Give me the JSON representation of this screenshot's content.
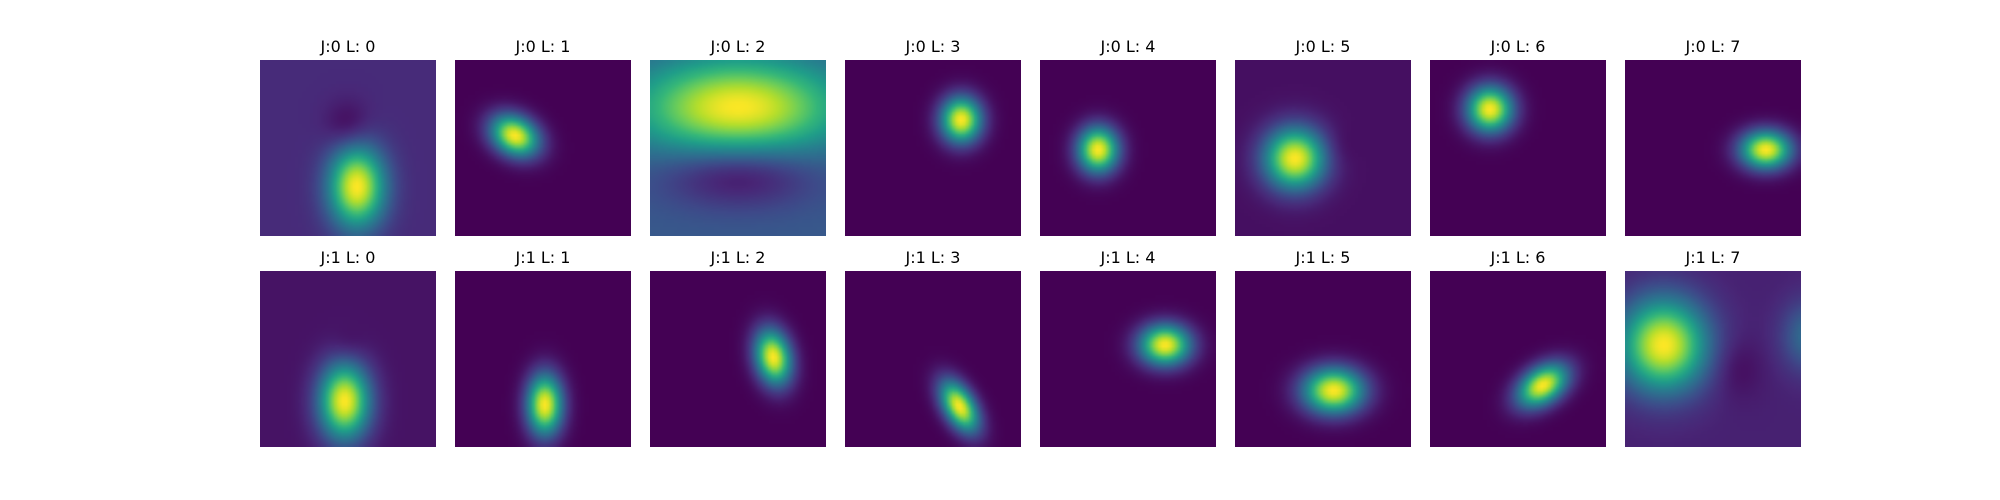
{
  "chart_data": {
    "type": "heatmap",
    "colormap": "viridis",
    "colormap_stops": [
      "#440154",
      "#482878",
      "#3e4989",
      "#31688e",
      "#26828e",
      "#1f9e89",
      "#35b779",
      "#6ece58",
      "#b5de2b",
      "#fde725"
    ],
    "axes_visible": false,
    "rows": [
      {
        "panels": [
          {
            "title": "J:0 L: 0",
            "background": 0.12,
            "blobs": [
              {
                "cx": 0.55,
                "cy": 0.72,
                "rx": 0.11,
                "ry": 0.16,
                "angle": 0,
                "amp": 0.88
              },
              {
                "cx": 0.5,
                "cy": 0.38,
                "rx": 0.09,
                "ry": 0.1,
                "angle": 0,
                "amp": -0.12
              }
            ]
          },
          {
            "title": "J:0 L: 1",
            "background": 0.0,
            "blobs": [
              {
                "cx": 0.34,
                "cy": 0.43,
                "rx": 0.1,
                "ry": 0.075,
                "angle": 30,
                "amp": 1.0
              }
            ]
          },
          {
            "title": "J:0 L: 2",
            "background": 0.28,
            "blobs": [
              {
                "cx": 0.5,
                "cy": 0.27,
                "rx": 0.4,
                "ry": 0.19,
                "angle": 0,
                "amp": 0.72
              },
              {
                "cx": 0.5,
                "cy": 0.65,
                "rx": 0.3,
                "ry": 0.13,
                "angle": 0,
                "amp": -0.26
              }
            ]
          },
          {
            "title": "J:0 L: 3",
            "background": 0.0,
            "blobs": [
              {
                "cx": 0.66,
                "cy": 0.34,
                "rx": 0.08,
                "ry": 0.09,
                "angle": 0,
                "amp": 1.0
              }
            ]
          },
          {
            "title": "J:0 L: 4",
            "background": 0.0,
            "blobs": [
              {
                "cx": 0.33,
                "cy": 0.51,
                "rx": 0.08,
                "ry": 0.09,
                "angle": 0,
                "amp": 1.0
              }
            ]
          },
          {
            "title": "J:0 L: 5",
            "background": 0.04,
            "blobs": [
              {
                "cx": 0.34,
                "cy": 0.56,
                "rx": 0.12,
                "ry": 0.12,
                "angle": 0,
                "amp": 0.96
              },
              {
                "cx": 0.58,
                "cy": 0.5,
                "rx": 0.07,
                "ry": 0.08,
                "angle": 0,
                "amp": -0.04
              }
            ]
          },
          {
            "title": "J:0 L: 6",
            "background": 0.0,
            "blobs": [
              {
                "cx": 0.34,
                "cy": 0.28,
                "rx": 0.09,
                "ry": 0.09,
                "angle": 0,
                "amp": 1.0
              }
            ]
          },
          {
            "title": "J:0 L: 7",
            "background": 0.0,
            "blobs": [
              {
                "cx": 0.8,
                "cy": 0.51,
                "rx": 0.1,
                "ry": 0.075,
                "angle": 0,
                "amp": 1.0
              }
            ]
          }
        ]
      },
      {
        "panels": [
          {
            "title": "J:1 L: 0",
            "background": 0.05,
            "blobs": [
              {
                "cx": 0.48,
                "cy": 0.74,
                "rx": 0.1,
                "ry": 0.15,
                "angle": 0,
                "amp": 0.95
              },
              {
                "cx": 0.5,
                "cy": 0.43,
                "rx": 0.07,
                "ry": 0.07,
                "angle": 0,
                "amp": -0.05
              }
            ]
          },
          {
            "title": "J:1 L: 1",
            "background": 0.0,
            "blobs": [
              {
                "cx": 0.51,
                "cy": 0.76,
                "rx": 0.07,
                "ry": 0.12,
                "angle": 0,
                "amp": 1.0
              }
            ]
          },
          {
            "title": "J:1 L: 2",
            "background": 0.0,
            "blobs": [
              {
                "cx": 0.7,
                "cy": 0.49,
                "rx": 0.07,
                "ry": 0.11,
                "angle": -12,
                "amp": 1.0
              }
            ]
          },
          {
            "title": "J:1 L: 3",
            "background": 0.0,
            "blobs": [
              {
                "cx": 0.65,
                "cy": 0.77,
                "rx": 0.06,
                "ry": 0.11,
                "angle": -30,
                "amp": 1.0
              }
            ]
          },
          {
            "title": "J:1 L: 4",
            "background": 0.0,
            "blobs": [
              {
                "cx": 0.71,
                "cy": 0.42,
                "rx": 0.1,
                "ry": 0.08,
                "angle": 0,
                "amp": 1.0
              }
            ]
          },
          {
            "title": "J:1 L: 5",
            "background": 0.0,
            "blobs": [
              {
                "cx": 0.56,
                "cy": 0.68,
                "rx": 0.12,
                "ry": 0.09,
                "angle": 0,
                "amp": 1.0
              }
            ]
          },
          {
            "title": "J:1 L: 6",
            "background": 0.0,
            "blobs": [
              {
                "cx": 0.64,
                "cy": 0.65,
                "rx": 0.11,
                "ry": 0.07,
                "angle": -35,
                "amp": 1.0
              }
            ]
          },
          {
            "title": "J:1 L: 7",
            "background": 0.09,
            "blobs": [
              {
                "cx": 0.22,
                "cy": 0.42,
                "rx": 0.17,
                "ry": 0.18,
                "angle": 0,
                "amp": 0.91
              },
              {
                "cx": 1.05,
                "cy": 0.37,
                "rx": 0.11,
                "ry": 0.14,
                "angle": 0,
                "amp": 0.28
              },
              {
                "cx": 0.63,
                "cy": 0.55,
                "rx": 0.1,
                "ry": 0.12,
                "angle": 0,
                "amp": -0.07
              }
            ]
          }
        ]
      }
    ]
  }
}
